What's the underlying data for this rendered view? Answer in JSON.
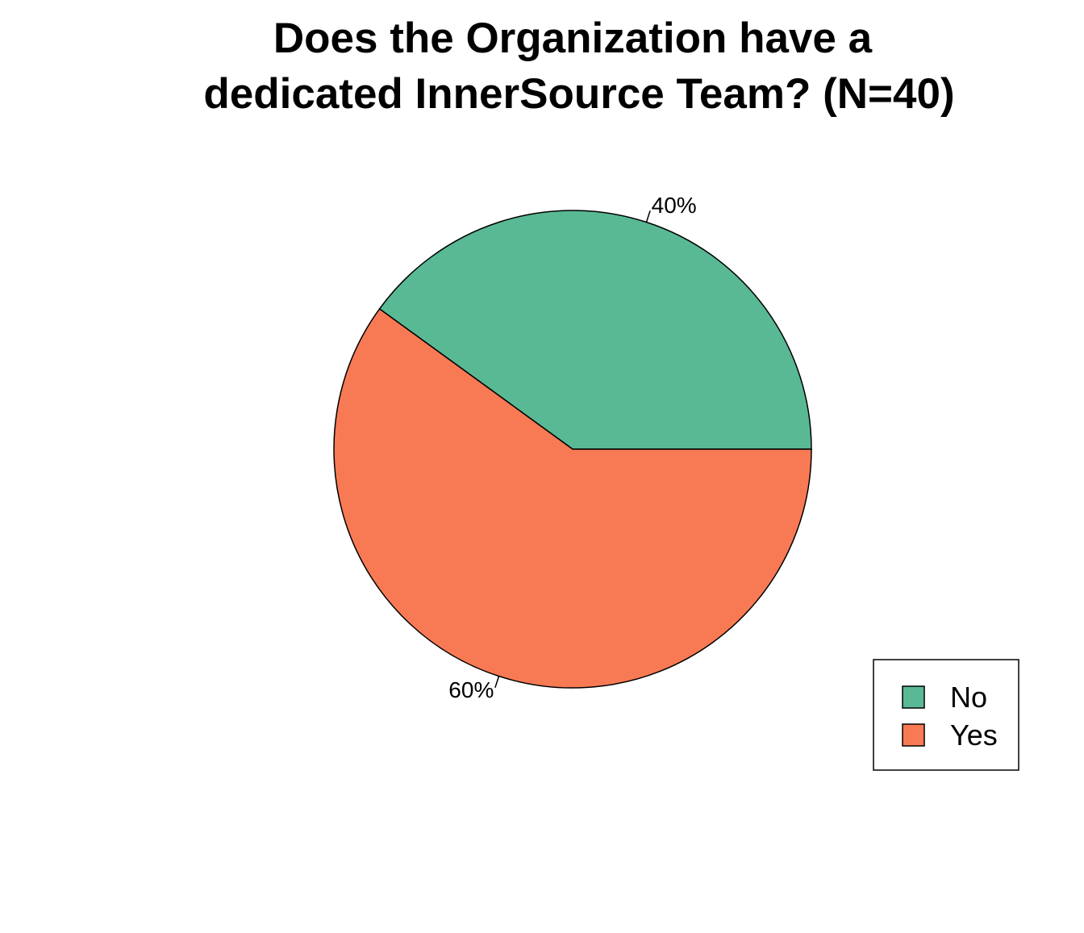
{
  "chart_data": {
    "type": "pie",
    "title_lines": [
      "Does the Organization have a",
      "dedicated InnerSource Team? (N=40)"
    ],
    "categories": [
      "No",
      "Yes"
    ],
    "values": [
      40,
      60
    ],
    "value_labels": [
      "40%",
      "60%"
    ],
    "colors": [
      "#59b994",
      "#f87a54"
    ],
    "legend_position": "bottom-right",
    "start_direction": "right (3 o'clock)",
    "winding": "counterclockwise"
  }
}
